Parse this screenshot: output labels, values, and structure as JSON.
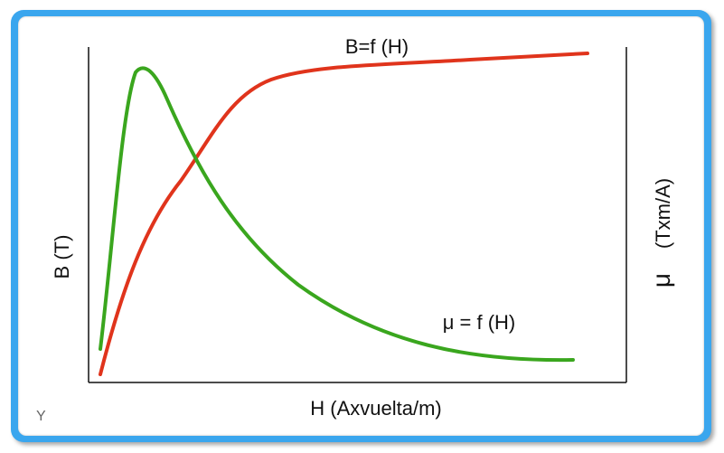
{
  "chart_data": {
    "type": "line",
    "title": "",
    "xlabel": "H (Axvuelta/m)",
    "ylabel_left": "B (T)",
    "ylabel_right_symbol": "μ",
    "ylabel_right_unit": "(Txm/A)",
    "grid": false,
    "series": [
      {
        "name": "B=f (H)",
        "color": "#e0341c",
        "shape": "saturating-rise"
      },
      {
        "name": "μ = f (H)",
        "color": "#3aa61e",
        "shape": "peak-then-decay"
      }
    ]
  },
  "corner_label": "Y",
  "colors": {
    "frame": "#3aa6ee",
    "b_curve": "#e0341c",
    "mu_curve": "#3aa61e"
  }
}
